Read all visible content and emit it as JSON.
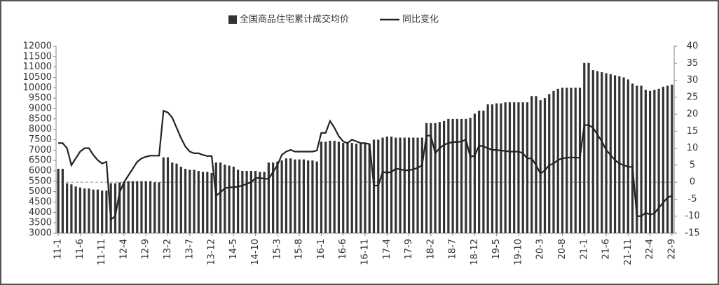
{
  "chart_data": {
    "type": "bar_line",
    "series": [
      {
        "name": "全国商品住宅累计成交均价",
        "type": "bar",
        "color": "#333333",
        "values": [
          6100,
          6100,
          5400,
          5350,
          5250,
          5200,
          5150,
          5150,
          5100,
          5100,
          5050,
          5050,
          5400,
          5400,
          5450,
          5450,
          5500,
          5500,
          5500,
          5500,
          5500,
          5500,
          5450,
          5450,
          6650,
          6650,
          6400,
          6350,
          6200,
          6100,
          6050,
          6050,
          6000,
          5950,
          5950,
          5900,
          6400,
          6400,
          6300,
          6250,
          6200,
          6050,
          6000,
          6000,
          6000,
          6000,
          5950,
          5950,
          6400,
          6400,
          6450,
          6500,
          6600,
          6600,
          6550,
          6550,
          6550,
          6500,
          6500,
          6450,
          7400,
          7400,
          7450,
          7450,
          7400,
          7350,
          7350,
          7350,
          7300,
          7300,
          7300,
          7300,
          7500,
          7500,
          7600,
          7650,
          7650,
          7600,
          7600,
          7600,
          7600,
          7600,
          7600,
          7600,
          8300,
          8300,
          8300,
          8350,
          8400,
          8500,
          8500,
          8500,
          8500,
          8500,
          8550,
          8750,
          8900,
          8900,
          9200,
          9200,
          9250,
          9250,
          9300,
          9300,
          9300,
          9300,
          9300,
          9300,
          9600,
          9600,
          9400,
          9500,
          9700,
          9850,
          9950,
          10000,
          10000,
          10000,
          10000,
          10000,
          11200,
          11200,
          10850,
          10800,
          10750,
          10700,
          10650,
          10600,
          10550,
          10500,
          10400,
          10200,
          10100,
          10100,
          9900,
          9850,
          9900,
          9950,
          10050,
          10100,
          10150
        ]
      },
      {
        "name": "同比变化",
        "type": "line",
        "axis": "y2",
        "color": "#222222",
        "values": [
          11.5,
          11.5,
          10,
          5,
          7,
          9,
          10,
          10,
          8,
          6.5,
          5.5,
          6,
          -11,
          -10,
          -3,
          0,
          2,
          4,
          6,
          7,
          7.5,
          7.8,
          7.8,
          7.8,
          21,
          20.5,
          19,
          16,
          13,
          10.5,
          9,
          8.5,
          8.5,
          8,
          7.7,
          7.7,
          -4,
          -3,
          -1.8,
          -1.5,
          -1.5,
          -1.3,
          -1,
          -0.5,
          0,
          1.2,
          1.3,
          1,
          1,
          3,
          5,
          8,
          9,
          9.5,
          9,
          9,
          9,
          9,
          9,
          9.3,
          14.5,
          14.5,
          18,
          16,
          13.5,
          12,
          11.5,
          12.5,
          12,
          11.5,
          11.5,
          11.2,
          -1,
          -1,
          3,
          2.8,
          3,
          4,
          3.8,
          3.5,
          3.5,
          3.8,
          4.2,
          5,
          13.7,
          13.7,
          8.5,
          10,
          11,
          11.5,
          11.8,
          11.8,
          12,
          12.5,
          7.5,
          7.8,
          10.8,
          10.5,
          10,
          9.5,
          9.5,
          9.3,
          9.2,
          9,
          9,
          9,
          8.5,
          7,
          7,
          5,
          2.5,
          3.5,
          5,
          5.5,
          6.5,
          7,
          7.2,
          7.3,
          7.2,
          7.2,
          16.8,
          16.8,
          16,
          14,
          12,
          9.5,
          8,
          6.5,
          5.5,
          5,
          4.5,
          4.5,
          -10,
          -10,
          -9,
          -9.5,
          -9.2,
          -7.5,
          -6,
          -4.5,
          -4
        ]
      }
    ],
    "categories": [
      "11-1",
      null,
      null,
      null,
      null,
      "11-6",
      null,
      null,
      null,
      null,
      "11-11",
      null,
      null,
      null,
      null,
      "12-4",
      null,
      null,
      null,
      null,
      "12-9",
      null,
      null,
      null,
      null,
      "13-2",
      null,
      null,
      null,
      null,
      "13-7",
      null,
      null,
      null,
      null,
      "13-12",
      null,
      null,
      null,
      null,
      "14-5",
      null,
      null,
      null,
      null,
      "14-10",
      null,
      null,
      null,
      null,
      "15-3",
      null,
      null,
      null,
      null,
      "15-8",
      null,
      null,
      null,
      null,
      "16-1",
      null,
      null,
      null,
      null,
      "16-6",
      null,
      null,
      null,
      null,
      "16-11",
      null,
      null,
      null,
      null,
      "17-4",
      null,
      null,
      null,
      null,
      "17-9",
      null,
      null,
      null,
      null,
      "18-2",
      null,
      null,
      null,
      null,
      "18-7",
      null,
      null,
      null,
      null,
      "18-12",
      null,
      null,
      null,
      null,
      "19-5",
      null,
      null,
      null,
      null,
      "19-10",
      null,
      null,
      null,
      null,
      "20-3",
      null,
      null,
      null,
      null,
      "20-8",
      null,
      null,
      null,
      null,
      "21-1",
      null,
      null,
      null,
      null,
      "21-6",
      null,
      null,
      null,
      null,
      "21-11",
      null,
      null,
      null,
      null,
      "22-4",
      null,
      null,
      null,
      null,
      "22-9"
    ],
    "ylim": [
      3000,
      12000
    ],
    "yticks": [
      3000,
      3500,
      4000,
      4500,
      5000,
      5500,
      6000,
      6500,
      7000,
      7500,
      8000,
      8500,
      9000,
      9500,
      10000,
      10500,
      11000,
      11500,
      12000
    ],
    "y2lim": [
      -15,
      40
    ],
    "y2ticks": [
      -15,
      -10,
      -5,
      0,
      5,
      10,
      15,
      20,
      25,
      30,
      35,
      40
    ],
    "legend": "top"
  }
}
